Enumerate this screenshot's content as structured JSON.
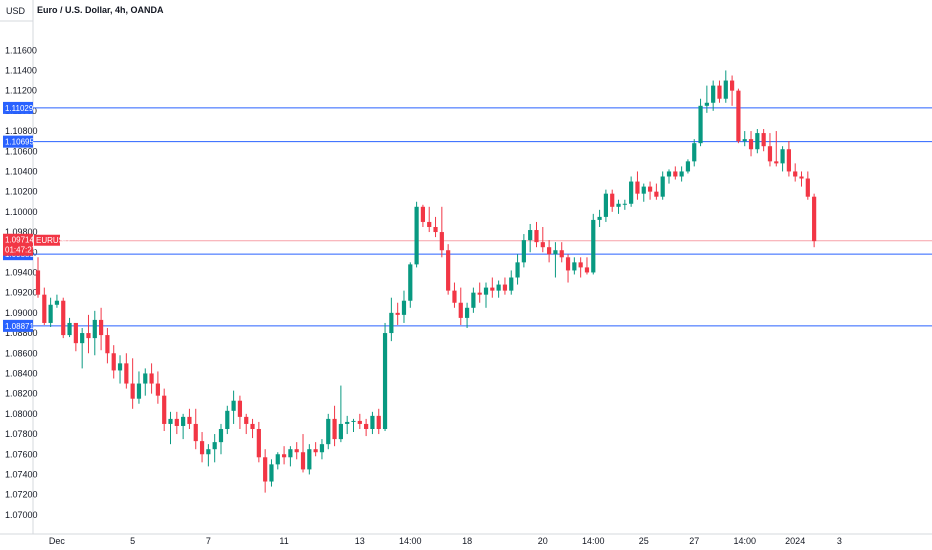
{
  "chart_data": {
    "type": "candlestick",
    "title": "Euro / U.S. Dollar, 4h, OANDA",
    "currency_label": "USD",
    "symbol": "EURUSD",
    "countdown": "01:47:27",
    "last_price": "1.09714",
    "ylim": [
      1.0685,
      1.1185
    ],
    "y_ticks": [
      "1.07000",
      "1.07200",
      "1.07400",
      "1.07600",
      "1.07800",
      "1.08000",
      "1.08200",
      "1.08400",
      "1.08600",
      "1.08800",
      "1.09000",
      "1.09200",
      "1.09400",
      "1.09600",
      "1.09800",
      "1.10000",
      "1.10200",
      "1.10400",
      "1.10600",
      "1.10800",
      "1.11000",
      "1.11200",
      "1.11400",
      "1.11600"
    ],
    "x_ticks": [
      {
        "label": "Dec",
        "index": 3
      },
      {
        "label": "5",
        "index": 15
      },
      {
        "label": "7",
        "index": 27
      },
      {
        "label": "11",
        "index": 39
      },
      {
        "label": "13",
        "index": 51
      },
      {
        "label": "14:00",
        "index": 59
      },
      {
        "label": "18",
        "index": 68
      },
      {
        "label": "20",
        "index": 80
      },
      {
        "label": "14:00",
        "index": 88
      },
      {
        "label": "25",
        "index": 96
      },
      {
        "label": "27",
        "index": 104
      },
      {
        "label": "14:00",
        "index": 112
      },
      {
        "label": "2024",
        "index": 120
      },
      {
        "label": "3",
        "index": 127
      }
    ],
    "horizontal_lines": [
      {
        "value": 1.11029,
        "label": "1.11029"
      },
      {
        "value": 1.10695,
        "label": "1.10695"
      },
      {
        "value": 1.09581,
        "label": "1.09581"
      },
      {
        "value": 1.08871,
        "label": "1.08871"
      }
    ],
    "candles": [
      [
        1.0942,
        1.0955,
        1.0915,
        1.0918
      ],
      [
        1.0918,
        1.0925,
        1.0888,
        1.089
      ],
      [
        1.089,
        1.0915,
        1.0886,
        1.0908
      ],
      [
        1.0908,
        1.0918,
        1.0905,
        1.0912
      ],
      [
        1.0912,
        1.0915,
        1.0875,
        1.0878
      ],
      [
        1.0878,
        1.0895,
        1.0876,
        1.089
      ],
      [
        1.089,
        1.0888,
        1.0862,
        1.087
      ],
      [
        1.087,
        1.0885,
        1.0845,
        1.088
      ],
      [
        1.088,
        1.0898,
        1.086,
        1.0875
      ],
      [
        1.0875,
        1.0902,
        1.0858,
        1.0893
      ],
      [
        1.0893,
        1.0905,
        1.0863,
        1.0878
      ],
      [
        1.0878,
        1.0885,
        1.085,
        1.086
      ],
      [
        1.086,
        1.0868,
        1.0835,
        1.0843
      ],
      [
        1.0843,
        1.0858,
        1.083,
        1.085
      ],
      [
        1.085,
        1.086,
        1.0825,
        1.083
      ],
      [
        1.083,
        1.0855,
        1.0805,
        1.0815
      ],
      [
        1.0815,
        1.0842,
        1.081,
        1.083
      ],
      [
        1.083,
        1.0845,
        1.0818,
        1.084
      ],
      [
        1.084,
        1.085,
        1.082,
        1.083
      ],
      [
        1.083,
        1.0842,
        1.081,
        1.0818
      ],
      [
        1.0818,
        1.0825,
        1.0783,
        1.079
      ],
      [
        1.079,
        1.0802,
        1.077,
        1.0795
      ],
      [
        1.0795,
        1.0802,
        1.078,
        1.0788
      ],
      [
        1.0788,
        1.08,
        1.0775,
        1.0797
      ],
      [
        1.0797,
        1.0805,
        1.0785,
        1.079
      ],
      [
        1.079,
        1.0805,
        1.0765,
        1.0773
      ],
      [
        1.0773,
        1.0782,
        1.0752,
        1.076
      ],
      [
        1.076,
        1.077,
        1.0748,
        1.0765
      ],
      [
        1.0765,
        1.078,
        1.0752,
        1.0772
      ],
      [
        1.0772,
        1.079,
        1.076,
        1.0785
      ],
      [
        1.0785,
        1.0808,
        1.078,
        1.0803
      ],
      [
        1.0803,
        1.0823,
        1.079,
        1.0813
      ],
      [
        1.0813,
        1.0818,
        1.0785,
        1.0797
      ],
      [
        1.0797,
        1.08,
        1.078,
        1.079
      ],
      [
        1.079,
        1.0795,
        1.0776,
        1.0785
      ],
      [
        1.0785,
        1.0792,
        1.0752,
        1.0757
      ],
      [
        1.0757,
        1.0765,
        1.0722,
        1.0733
      ],
      [
        1.0733,
        1.0755,
        1.0728,
        1.075
      ],
      [
        1.075,
        1.0762,
        1.0745,
        1.076
      ],
      [
        1.076,
        1.0768,
        1.075,
        1.0757
      ],
      [
        1.0757,
        1.0768,
        1.0748,
        1.0765
      ],
      [
        1.0765,
        1.0772,
        1.0755,
        1.0762
      ],
      [
        1.0762,
        1.078,
        1.0742,
        1.0745
      ],
      [
        1.0745,
        1.077,
        1.074,
        1.0765
      ],
      [
        1.0765,
        1.0772,
        1.0758,
        1.0762
      ],
      [
        1.0762,
        1.0775,
        1.0755,
        1.077
      ],
      [
        1.077,
        1.08,
        1.0765,
        1.0795
      ],
      [
        1.0795,
        1.0808,
        1.0768,
        1.0775
      ],
      [
        1.0775,
        1.0828,
        1.0772,
        1.079
      ],
      [
        1.079,
        1.0798,
        1.078,
        1.0792
      ],
      [
        1.0792,
        1.0795,
        1.0782,
        1.0793
      ],
      [
        1.0793,
        1.08,
        1.0785,
        1.079
      ],
      [
        1.079,
        1.0795,
        1.0778,
        1.0785
      ],
      [
        1.0785,
        1.0802,
        1.078,
        1.0798
      ],
      [
        1.0798,
        1.0805,
        1.078,
        1.0785
      ],
      [
        1.0785,
        1.089,
        1.0783,
        1.088
      ],
      [
        1.088,
        1.0915,
        1.0872,
        1.09
      ],
      [
        1.09,
        1.091,
        1.0888,
        1.0898
      ],
      [
        1.0898,
        1.0922,
        1.089,
        1.0912
      ],
      [
        1.0912,
        1.095,
        1.0905,
        1.0948
      ],
      [
        1.0948,
        1.101,
        1.0945,
        1.1005
      ],
      [
        1.1005,
        1.1007,
        1.0985,
        1.099
      ],
      [
        1.099,
        1.1005,
        1.098,
        1.0985
      ],
      [
        1.0985,
        1.0995,
        1.0975,
        1.098
      ],
      [
        1.098,
        1.1005,
        1.0955,
        1.0962
      ],
      [
        1.0962,
        1.0968,
        1.0918,
        1.0922
      ],
      [
        1.0922,
        1.093,
        1.0905,
        1.091
      ],
      [
        1.091,
        1.0925,
        1.0888,
        1.0895
      ],
      [
        1.0895,
        1.091,
        1.0885,
        1.0905
      ],
      [
        1.0905,
        1.0925,
        1.09,
        1.092
      ],
      [
        1.092,
        1.093,
        1.091,
        1.0918
      ],
      [
        1.0918,
        1.093,
        1.0905,
        1.0925
      ],
      [
        1.0925,
        1.0935,
        1.0915,
        1.0922
      ],
      [
        1.0922,
        1.0932,
        1.0915,
        1.0928
      ],
      [
        1.0928,
        1.0935,
        1.0918,
        1.0922
      ],
      [
        1.0922,
        1.0942,
        1.0918,
        1.0935
      ],
      [
        1.0935,
        1.0958,
        1.0928,
        1.095
      ],
      [
        1.095,
        1.0978,
        1.0945,
        1.0972
      ],
      [
        1.0972,
        1.0988,
        1.096,
        1.0982
      ],
      [
        1.0982,
        1.099,
        1.0965,
        1.097
      ],
      [
        1.097,
        1.0985,
        1.096,
        1.0965
      ],
      [
        1.0965,
        1.0972,
        1.095,
        1.0958
      ],
      [
        1.0958,
        1.097,
        1.0935,
        1.0962
      ],
      [
        1.0962,
        1.097,
        1.095,
        1.0955
      ],
      [
        1.0955,
        1.0958,
        1.093,
        1.0942
      ],
      [
        1.0942,
        1.0955,
        1.0938,
        1.095
      ],
      [
        1.095,
        1.0955,
        1.0935,
        1.0945
      ],
      [
        1.0945,
        1.0955,
        1.0938,
        1.094
      ],
      [
        1.094,
        1.0998,
        1.0938,
        1.0992
      ],
      [
        1.0992,
        1.1002,
        1.0985,
        1.0995
      ],
      [
        1.0995,
        1.1022,
        1.099,
        1.1018
      ],
      [
        1.1018,
        1.1022,
        1.1,
        1.1005
      ],
      [
        1.1005,
        1.1012,
        1.0998,
        1.1008
      ],
      [
        1.1008,
        1.1012,
        1.1002,
        1.1008
      ],
      [
        1.1008,
        1.1035,
        1.1005,
        1.103
      ],
      [
        1.103,
        1.104,
        1.1012,
        1.1018
      ],
      [
        1.1018,
        1.1028,
        1.101,
        1.1025
      ],
      [
        1.1025,
        1.103,
        1.1012,
        1.102
      ],
      [
        1.102,
        1.1028,
        1.1012,
        1.1015
      ],
      [
        1.1015,
        1.104,
        1.1012,
        1.1035
      ],
      [
        1.1035,
        1.1042,
        1.1028,
        1.104
      ],
      [
        1.104,
        1.1045,
        1.1032,
        1.1035
      ],
      [
        1.1035,
        1.1045,
        1.103,
        1.104
      ],
      [
        1.104,
        1.1052,
        1.1038,
        1.105
      ],
      [
        1.105,
        1.1072,
        1.1045,
        1.1068
      ],
      [
        1.1068,
        1.1112,
        1.1065,
        1.1105
      ],
      [
        1.1105,
        1.1125,
        1.1098,
        1.1108
      ],
      [
        1.1108,
        1.113,
        1.11,
        1.1125
      ],
      [
        1.1125,
        1.113,
        1.1108,
        1.1112
      ],
      [
        1.1112,
        1.114,
        1.1108,
        1.113
      ],
      [
        1.113,
        1.1135,
        1.1105,
        1.112
      ],
      [
        1.112,
        1.1122,
        1.1068,
        1.107
      ],
      [
        1.107,
        1.108,
        1.1065,
        1.1072
      ],
      [
        1.1072,
        1.108,
        1.1055,
        1.1062
      ],
      [
        1.1062,
        1.1082,
        1.1058,
        1.1078
      ],
      [
        1.1078,
        1.1082,
        1.106,
        1.1065
      ],
      [
        1.1065,
        1.1078,
        1.1045,
        1.105
      ],
      [
        1.105,
        1.108,
        1.1045,
        1.1048
      ],
      [
        1.1048,
        1.1065,
        1.104,
        1.1062
      ],
      [
        1.1062,
        1.107,
        1.1035,
        1.104
      ],
      [
        1.104,
        1.1048,
        1.103,
        1.1035
      ],
      [
        1.1035,
        1.104,
        1.1025,
        1.1033
      ],
      [
        1.1033,
        1.104,
        1.1012,
        1.1015
      ],
      [
        1.1015,
        1.1018,
        1.0965,
        1.0971
      ]
    ]
  }
}
